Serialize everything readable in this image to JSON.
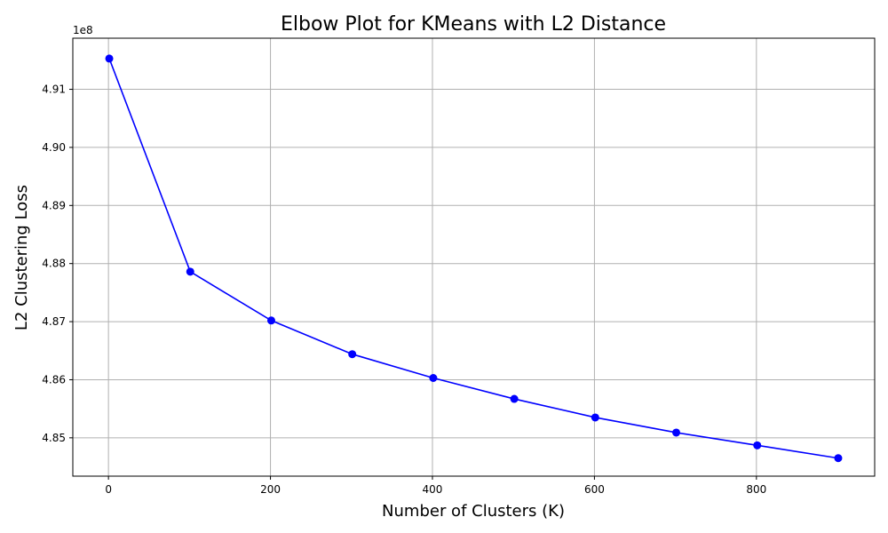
{
  "chart_data": {
    "type": "line",
    "title": "Elbow Plot for KMeans with L2 Distance",
    "xlabel": "Number of Clusters (K)",
    "ylabel": "L2 Clustering Loss",
    "y_offset_label": "1e8",
    "y_scale_factor": 100000000,
    "xlim": [
      -44,
      946
    ],
    "ylim": [
      4.8434,
      4.9188
    ],
    "x_ticks": [
      0,
      200,
      400,
      600,
      800
    ],
    "y_ticks": [
      4.85,
      4.86,
      4.87,
      4.88,
      4.89,
      4.9,
      4.91
    ],
    "y_tick_labels": [
      "4.85",
      "4.86",
      "4.87",
      "4.88",
      "4.89",
      "4.90",
      "4.91"
    ],
    "grid": true,
    "line_color": "#0000ff",
    "series": [
      {
        "x": [
          1,
          101,
          201,
          301,
          401,
          501,
          601,
          701,
          801,
          901
        ],
        "y": [
          4.9153,
          4.8786,
          4.8702,
          4.8644,
          4.8603,
          4.8567,
          4.8535,
          4.8509,
          4.8487,
          4.8465
        ]
      }
    ]
  }
}
